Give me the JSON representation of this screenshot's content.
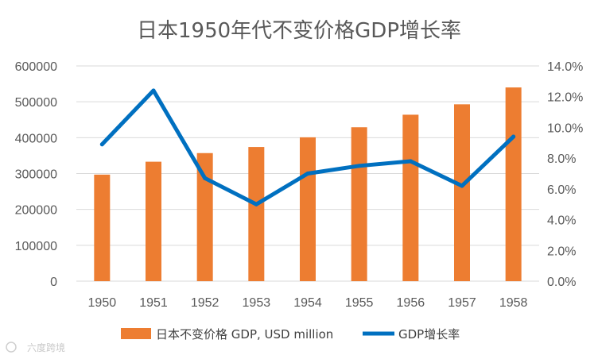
{
  "chart_data": {
    "type": "bar+line",
    "title": "日本1950年代不变价格GDP增长率",
    "categories": [
      "1950",
      "1951",
      "1952",
      "1953",
      "1954",
      "1955",
      "1956",
      "1957",
      "1958"
    ],
    "series": [
      {
        "name": "日本不变价格 GDP, USD million",
        "type": "bar",
        "axis": "left",
        "color": "#ED7D31",
        "values": [
          297000,
          333000,
          357000,
          374000,
          401000,
          429000,
          464000,
          493000,
          540000
        ]
      },
      {
        "name": "GDP增长率",
        "type": "line",
        "axis": "right",
        "color": "#0070C0",
        "values": [
          8.9,
          12.4,
          6.7,
          5.0,
          7.0,
          7.5,
          7.8,
          6.2,
          9.4
        ]
      }
    ],
    "y_left": {
      "ylim": [
        0,
        600000
      ],
      "ticks": [
        "0",
        "100000",
        "200000",
        "300000",
        "400000",
        "500000",
        "600000"
      ]
    },
    "y_right": {
      "ylim": [
        0,
        14
      ],
      "ticks": [
        "0.0%",
        "2.0%",
        "4.0%",
        "6.0%",
        "8.0%",
        "10.0%",
        "12.0%",
        "14.0%"
      ]
    },
    "grid": true,
    "legend_position": "bottom"
  },
  "watermark": "六度跨境"
}
